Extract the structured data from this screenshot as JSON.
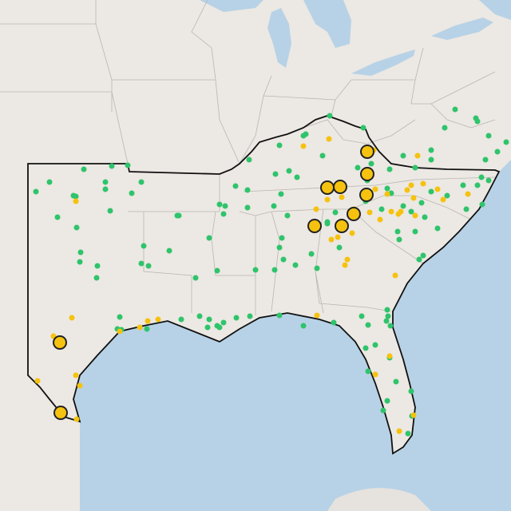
{
  "map": {
    "point_colors": {
      "green": "#2fc46b",
      "yellow": "#f5c20f"
    },
    "land_color": "#ece8e3",
    "water_color": "#b7d2e6",
    "outline_color": "#111111"
  }
}
